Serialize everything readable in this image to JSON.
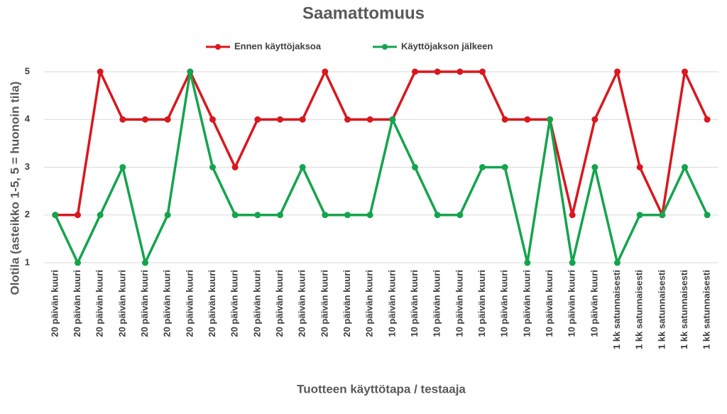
{
  "chart_data": {
    "type": "line",
    "title": "Saamattomuus",
    "x_label": "Tuotteen käyttötapa / testaaja",
    "y_label": "Olotila (asteikko 1-5, 5 = huonoin tila)",
    "categories": [
      "20 päivän kuuri",
      "20 päivän kuuri",
      "20 päivän kuuri",
      "20 päivän kuuri",
      "20 päivän kuuri",
      "20 päivän kuuri",
      "20 päivän kuuri",
      "20 päivän kuuri",
      "20 päivän kuuri",
      "20 päivän kuuri",
      "20 päivän kuuri",
      "20 päivän kuuri",
      "20 päivän kuuri",
      "20 päivän kuuri",
      "20 päivän kuuri",
      "10 päivän kuuri",
      "10 päivän kuuri",
      "10 päivän kuuri",
      "10 päivän kuuri",
      "10 päivän kuuri",
      "10 päivän kuuri",
      "10 päivän kuuri",
      "10 päivän kuuri",
      "10 päivän kuuri",
      "10 päivän kuuri",
      "1 kk satunnaisesti",
      "1 kk satunnaisesti",
      "1 kk satunnaisesti",
      "1 kk satunnaisesti",
      "1 kk satunnaisesti"
    ],
    "series": [
      {
        "name": "Ennen käyttöjaksoa",
        "color": "#d9171e",
        "values": [
          2,
          2,
          5,
          4,
          4,
          4,
          5,
          4,
          3,
          4,
          4,
          4,
          5,
          4,
          4,
          4,
          5,
          5,
          5,
          5,
          4,
          4,
          4,
          2,
          4,
          5,
          3,
          2,
          5,
          4
        ]
      },
      {
        "name": "Käyttöjakson jälkeen",
        "color": "#14a44d",
        "values": [
          2,
          1,
          2,
          3,
          1,
          2,
          5,
          3,
          2,
          2,
          2,
          3,
          2,
          2,
          2,
          4,
          3,
          2,
          2,
          3,
          3,
          1,
          4,
          1,
          3,
          1,
          2,
          2,
          3,
          2
        ]
      }
    ],
    "ylim": [
      1,
      5
    ],
    "yticks": [
      1,
      2,
      3,
      4,
      5
    ],
    "grid": true,
    "legend": "top"
  }
}
